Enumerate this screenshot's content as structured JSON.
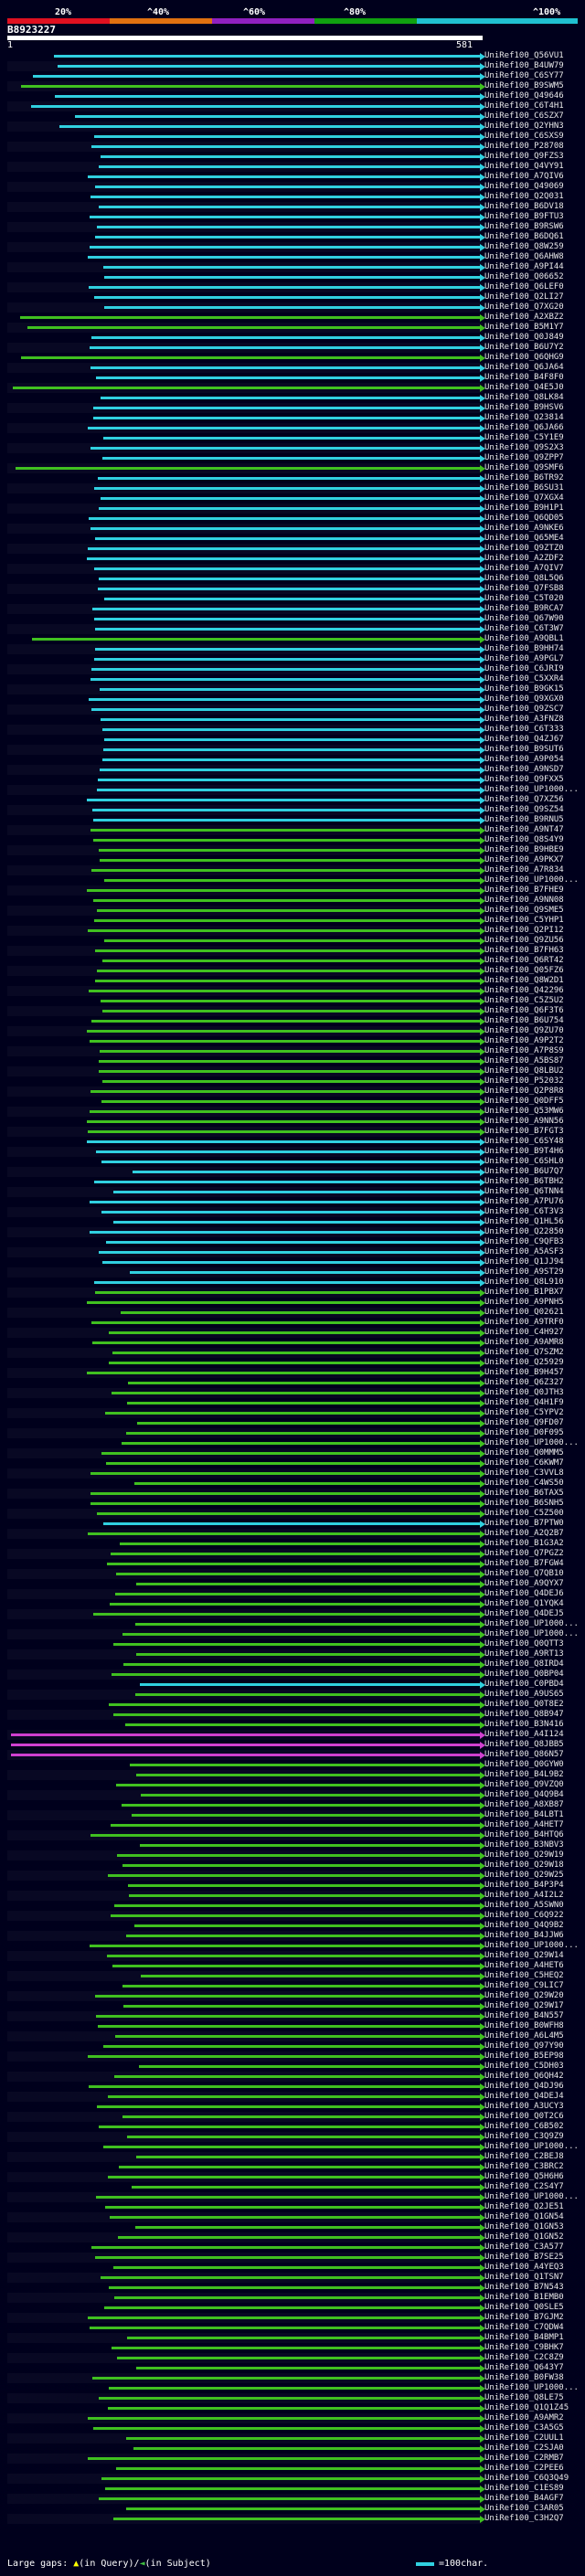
{
  "scale": {
    "labels": [
      "20%",
      "^40%",
      "^60%",
      "^80%",
      "^100%"
    ],
    "colors": [
      "#e01020",
      "#e07010",
      "#9020c0",
      "#10a010",
      "#20c0d0"
    ]
  },
  "query": {
    "id": "B8923227",
    "start": "1",
    "end": "581"
  },
  "legend": {
    "prefix": "Large gaps: ",
    "query_part": "(in Query)/",
    "subject_part": "(in Subject)",
    "scale_text": "=100char."
  },
  "hits": [
    {
      "label": "UniRef100_Q56VU1",
      "color": "cyan"
    },
    {
      "label": "UniRef100_B4UW79",
      "color": "cyan"
    },
    {
      "label": "UniRef100_C6SY77",
      "color": "cyan"
    },
    {
      "label": "UniRef100_B9SWM5",
      "color": "green"
    },
    {
      "label": "UniRef100_Q49646",
      "color": "cyan"
    },
    {
      "label": "UniRef100_C6T4H1",
      "color": "cyan"
    },
    {
      "label": "UniRef100_C6SZX7",
      "color": "cyan"
    },
    {
      "label": "UniRef100_Q2YHN3",
      "color": "cyan"
    },
    {
      "label": "UniRef100_C6SXS9",
      "color": "cyan"
    },
    {
      "label": "UniRef100_P28708",
      "color": "cyan"
    },
    {
      "label": "UniRef100_Q9FZS3",
      "color": "cyan"
    },
    {
      "label": "UniRef100_Q4VY91",
      "color": "cyan"
    },
    {
      "label": "UniRef100_A7QIV6",
      "color": "cyan"
    },
    {
      "label": "UniRef100_Q49069",
      "color": "cyan"
    },
    {
      "label": "UniRef100_Q2Q031",
      "color": "cyan"
    },
    {
      "label": "UniRef100_B6DV18",
      "color": "cyan"
    },
    {
      "label": "UniRef100_B9FTU3",
      "color": "cyan"
    },
    {
      "label": "UniRef100_B9RSW6",
      "color": "cyan"
    },
    {
      "label": "UniRef100_B6DQ61",
      "color": "cyan"
    },
    {
      "label": "UniRef100_Q8W259",
      "color": "cyan"
    },
    {
      "label": "UniRef100_Q6AHW8",
      "color": "cyan"
    },
    {
      "label": "UniRef100_A9PI44",
      "color": "cyan"
    },
    {
      "label": "UniRef100_Q06652",
      "color": "cyan"
    },
    {
      "label": "UniRef100_Q6LEF0",
      "color": "cyan"
    },
    {
      "label": "UniRef100_Q2LI27",
      "color": "cyan"
    },
    {
      "label": "UniRef100_Q7XG20",
      "color": "cyan"
    },
    {
      "label": "UniRef100_A2XBZ2",
      "color": "green"
    },
    {
      "label": "UniRef100_B5M1Y7",
      "color": "green"
    },
    {
      "label": "UniRef100_Q0J849",
      "color": "cyan"
    },
    {
      "label": "UniRef100_B6U7Y2",
      "color": "cyan"
    },
    {
      "label": "UniRef100_Q6QHG9",
      "color": "green"
    },
    {
      "label": "UniRef100_Q6JA64",
      "color": "cyan"
    },
    {
      "label": "UniRef100_B4F8F0",
      "color": "cyan"
    },
    {
      "label": "UniRef100_Q4E5J0",
      "color": "green"
    },
    {
      "label": "UniRef100_Q8LK84",
      "color": "cyan"
    },
    {
      "label": "UniRef100_B9HSV6",
      "color": "cyan"
    },
    {
      "label": "UniRef100_Q23814",
      "color": "cyan"
    },
    {
      "label": "UniRef100_Q6JA66",
      "color": "cyan"
    },
    {
      "label": "UniRef100_C5Y1E9",
      "color": "cyan"
    },
    {
      "label": "UniRef100_Q9S2X3",
      "color": "cyan"
    },
    {
      "label": "UniRef100_Q9ZPP7",
      "color": "cyan"
    },
    {
      "label": "UniRef100_Q9SMF6",
      "color": "green"
    },
    {
      "label": "UniRef100_B6TR92",
      "color": "cyan"
    },
    {
      "label": "UniRef100_B6SU31",
      "color": "cyan"
    },
    {
      "label": "UniRef100_Q7XGX4",
      "color": "cyan"
    },
    {
      "label": "UniRef100_B9H1P1",
      "color": "cyan"
    },
    {
      "label": "UniRef100_Q6QD05",
      "color": "cyan"
    },
    {
      "label": "UniRef100_A9NKE6",
      "color": "cyan"
    },
    {
      "label": "UniRef100_Q65ME4",
      "color": "cyan"
    },
    {
      "label": "UniRef100_Q9ZTZ0",
      "color": "cyan"
    },
    {
      "label": "UniRef100_A2ZDF2",
      "color": "cyan"
    },
    {
      "label": "UniRef100_A7QIV7",
      "color": "cyan"
    },
    {
      "label": "UniRef100_Q8L5Q6",
      "color": "cyan"
    },
    {
      "label": "UniRef100_Q7FSB8",
      "color": "cyan"
    },
    {
      "label": "UniRef100_C5T020",
      "color": "cyan"
    },
    {
      "label": "UniRef100_B9RCA7",
      "color": "cyan"
    },
    {
      "label": "UniRef100_Q67W90",
      "color": "cyan"
    },
    {
      "label": "UniRef100_C6T3W7",
      "color": "cyan"
    },
    {
      "label": "UniRef100_A9QBL1",
      "color": "green"
    },
    {
      "label": "UniRef100_B9HH74",
      "color": "cyan"
    },
    {
      "label": "UniRef100_A9PGL7",
      "color": "cyan"
    },
    {
      "label": "UniRef100_C6JRI9",
      "color": "cyan"
    },
    {
      "label": "UniRef100_C5XXR4",
      "color": "cyan"
    },
    {
      "label": "UniRef100_B9GK15",
      "color": "cyan"
    },
    {
      "label": "UniRef100_Q9XGX0",
      "color": "cyan"
    },
    {
      "label": "UniRef100_Q9ZSC7",
      "color": "cyan"
    },
    {
      "label": "UniRef100_A3FNZ8",
      "color": "cyan"
    },
    {
      "label": "UniRef100_C6T333",
      "color": "cyan"
    },
    {
      "label": "UniRef100_Q4ZJ67",
      "color": "cyan"
    },
    {
      "label": "UniRef100_B9SUT6",
      "color": "cyan"
    },
    {
      "label": "UniRef100_A9P054",
      "color": "cyan"
    },
    {
      "label": "UniRef100_A9NSD7",
      "color": "cyan"
    },
    {
      "label": "UniRef100_Q9FXX5",
      "color": "cyan"
    },
    {
      "label": "UniRef100_UP1000...",
      "color": "cyan"
    },
    {
      "label": "UniRef100_Q7XZ56",
      "color": "cyan"
    },
    {
      "label": "UniRef100_Q9SZ54",
      "color": "cyan"
    },
    {
      "label": "UniRef100_B9RNU5",
      "color": "cyan"
    },
    {
      "label": "UniRef100_A9NT47",
      "color": "green"
    },
    {
      "label": "UniRef100_Q8S4Y9",
      "color": "green"
    },
    {
      "label": "UniRef100_B9HBE9",
      "color": "green"
    },
    {
      "label": "UniRef100_A9PKX7",
      "color": "green"
    },
    {
      "label": "UniRef100_A7R834",
      "color": "green"
    },
    {
      "label": "UniRef100_UP1000...",
      "color": "green"
    },
    {
      "label": "UniRef100_B7FHE9",
      "color": "green"
    },
    {
      "label": "UniRef100_A9NN08",
      "color": "green"
    },
    {
      "label": "UniRef100_Q9SME5",
      "color": "green"
    },
    {
      "label": "UniRef100_C5YHP1",
      "color": "green"
    },
    {
      "label": "UniRef100_Q2PI12",
      "color": "green"
    },
    {
      "label": "UniRef100_Q9ZU56",
      "color": "green"
    },
    {
      "label": "UniRef100_B7FH63",
      "color": "green"
    },
    {
      "label": "UniRef100_Q6RT42",
      "color": "green"
    },
    {
      "label": "UniRef100_Q05FZ6",
      "color": "green"
    },
    {
      "label": "UniRef100_Q8W2D1",
      "color": "green"
    },
    {
      "label": "UniRef100_Q42296",
      "color": "green"
    },
    {
      "label": "UniRef100_C5Z5U2",
      "color": "green"
    },
    {
      "label": "UniRef100_Q6F3T6",
      "color": "green"
    },
    {
      "label": "UniRef100_B6U754",
      "color": "green"
    },
    {
      "label": "UniRef100_Q9ZU70",
      "color": "green"
    },
    {
      "label": "UniRef100_A9P2T2",
      "color": "green"
    },
    {
      "label": "UniRef100_A7P8S9",
      "color": "green"
    },
    {
      "label": "UniRef100_A5BS87",
      "color": "green"
    },
    {
      "label": "UniRef100_Q8LBU2",
      "color": "green"
    },
    {
      "label": "UniRef100_P52032",
      "color": "green"
    },
    {
      "label": "UniRef100_Q2P8R8",
      "color": "green"
    },
    {
      "label": "UniRef100_Q0DFF5",
      "color": "green"
    },
    {
      "label": "UniRef100_Q53MW6",
      "color": "green"
    },
    {
      "label": "UniRef100_A9NN56",
      "color": "green"
    },
    {
      "label": "UniRef100_B7FGT3",
      "color": "green"
    },
    {
      "label": "UniRef100_C6SY48",
      "color": "cyan"
    },
    {
      "label": "UniRef100_B9T4H6",
      "color": "cyan"
    },
    {
      "label": "UniRef100_C6SHL0",
      "color": "cyan"
    },
    {
      "label": "UniRef100_B6U7Q7",
      "color": "cyan"
    },
    {
      "label": "UniRef100_B6TBH2",
      "color": "cyan"
    },
    {
      "label": "UniRef100_Q6TNN4",
      "color": "cyan"
    },
    {
      "label": "UniRef100_A7PU76",
      "color": "cyan"
    },
    {
      "label": "UniRef100_C6T3V3",
      "color": "cyan"
    },
    {
      "label": "UniRef100_Q1HL56",
      "color": "cyan"
    },
    {
      "label": "UniRef100_Q22850",
      "color": "cyan"
    },
    {
      "label": "UniRef100_C9QFB3",
      "color": "cyan"
    },
    {
      "label": "UniRef100_A5ASF3",
      "color": "cyan"
    },
    {
      "label": "UniRef100_Q1JJ94",
      "color": "cyan"
    },
    {
      "label": "UniRef100_A9ST29",
      "color": "cyan"
    },
    {
      "label": "UniRef100_Q8L910",
      "color": "cyan"
    },
    {
      "label": "UniRef100_B1PBX7",
      "color": "green"
    },
    {
      "label": "UniRef100_A9PNH5",
      "color": "green"
    },
    {
      "label": "UniRef100_Q02621",
      "color": "green"
    },
    {
      "label": "UniRef100_A9TRF0",
      "color": "green"
    },
    {
      "label": "UniRef100_C4H927",
      "color": "green"
    },
    {
      "label": "UniRef100_A9AMR8",
      "color": "green"
    },
    {
      "label": "UniRef100_Q7SZM2",
      "color": "green"
    },
    {
      "label": "UniRef100_Q25929",
      "color": "green"
    },
    {
      "label": "UniRef100_B9H457",
      "color": "green"
    },
    {
      "label": "UniRef100_Q6Z327",
      "color": "green"
    },
    {
      "label": "UniRef100_Q0JTH3",
      "color": "green"
    },
    {
      "label": "UniRef100_Q4H1F9",
      "color": "green"
    },
    {
      "label": "UniRef100_C5YPV2",
      "color": "green"
    },
    {
      "label": "UniRef100_Q9FD07",
      "color": "green"
    },
    {
      "label": "UniRef100_D0F095",
      "color": "green"
    },
    {
      "label": "UniRef100_UP1000...",
      "color": "green"
    },
    {
      "label": "UniRef100_Q0MMM5",
      "color": "green"
    },
    {
      "label": "UniRef100_C6KWM7",
      "color": "green"
    },
    {
      "label": "UniRef100_C3VVL8",
      "color": "green"
    },
    {
      "label": "UniRef100_C4WS50",
      "color": "green"
    },
    {
      "label": "UniRef100_B6TAX5",
      "color": "green"
    },
    {
      "label": "UniRef100_B6SNH5",
      "color": "green"
    },
    {
      "label": "UniRef100_C5Z500",
      "color": "green"
    },
    {
      "label": "UniRef100_B7PTW0",
      "color": "cyan"
    },
    {
      "label": "UniRef100_A2Q2B7",
      "color": "green"
    },
    {
      "label": "UniRef100_B1G3A2",
      "color": "green"
    },
    {
      "label": "UniRef100_Q7PGZ2",
      "color": "green"
    },
    {
      "label": "UniRef100_B7FGW4",
      "color": "green"
    },
    {
      "label": "UniRef100_Q7QB10",
      "color": "green"
    },
    {
      "label": "UniRef100_A9QYX7",
      "color": "green"
    },
    {
      "label": "UniRef100_Q4DEJ6",
      "color": "green"
    },
    {
      "label": "UniRef100_Q1YQK4",
      "color": "green"
    },
    {
      "label": "UniRef100_Q4DEJ5",
      "color": "green"
    },
    {
      "label": "UniRef100_UP1000...",
      "color": "green"
    },
    {
      "label": "UniRef100_UP1000...",
      "color": "green"
    },
    {
      "label": "UniRef100_Q0QTT3",
      "color": "green"
    },
    {
      "label": "UniRef100_A9RT13",
      "color": "green"
    },
    {
      "label": "UniRef100_Q8IRD4",
      "color": "green"
    },
    {
      "label": "UniRef100_Q0BP04",
      "color": "green"
    },
    {
      "label": "UniRef100_C0PBD4",
      "color": "cyan"
    },
    {
      "label": "UniRef100_A9US65",
      "color": "green"
    },
    {
      "label": "UniRef100_Q0T8E2",
      "color": "green"
    },
    {
      "label": "UniRef100_Q8B947",
      "color": "green"
    },
    {
      "label": "UniRef100_B3N416",
      "color": "green"
    },
    {
      "label": "UniRef100_A4I124",
      "color": "magenta"
    },
    {
      "label": "UniRef100_Q8JBB5",
      "color": "magenta"
    },
    {
      "label": "UniRef100_Q86N57",
      "color": "magenta"
    },
    {
      "label": "UniRef100_Q0GYW0",
      "color": "green"
    },
    {
      "label": "UniRef100_B4L9B2",
      "color": "green"
    },
    {
      "label": "UniRef100_Q9VZQ0",
      "color": "green"
    },
    {
      "label": "UniRef100_Q4Q9B4",
      "color": "green"
    },
    {
      "label": "UniRef100_A8XB87",
      "color": "green"
    },
    {
      "label": "UniRef100_B4LBT1",
      "color": "green"
    },
    {
      "label": "UniRef100_A4HET7",
      "color": "green"
    },
    {
      "label": "UniRef100_B4HTQ6",
      "color": "green"
    },
    {
      "label": "UniRef100_B3NBV3",
      "color": "green"
    },
    {
      "label": "UniRef100_Q29W19",
      "color": "green"
    },
    {
      "label": "UniRef100_Q29W18",
      "color": "green"
    },
    {
      "label": "UniRef100_Q29W25",
      "color": "green"
    },
    {
      "label": "UniRef100_B4P3P4",
      "color": "green"
    },
    {
      "label": "UniRef100_A4I2L2",
      "color": "green"
    },
    {
      "label": "UniRef100_A5SWN0",
      "color": "green"
    },
    {
      "label": "UniRef100_C6Q922",
      "color": "green"
    },
    {
      "label": "UniRef100_Q4Q9B2",
      "color": "green"
    },
    {
      "label": "UniRef100_B4JJW6",
      "color": "green"
    },
    {
      "label": "UniRef100_UP1000...",
      "color": "green"
    },
    {
      "label": "UniRef100_Q29W14",
      "color": "green"
    },
    {
      "label": "UniRef100_A4HET6",
      "color": "green"
    },
    {
      "label": "UniRef100_C5HEQ2",
      "color": "green"
    },
    {
      "label": "UniRef100_C9LIC7",
      "color": "green"
    },
    {
      "label": "UniRef100_Q29W20",
      "color": "green"
    },
    {
      "label": "UniRef100_Q29W17",
      "color": "green"
    },
    {
      "label": "UniRef100_B4N557",
      "color": "green"
    },
    {
      "label": "UniRef100_B0WFH8",
      "color": "green"
    },
    {
      "label": "UniRef100_A6L4M5",
      "color": "green"
    },
    {
      "label": "UniRef100_Q97Y90",
      "color": "green"
    },
    {
      "label": "UniRef100_B5EP98",
      "color": "green"
    },
    {
      "label": "UniRef100_C5DH03",
      "color": "green"
    },
    {
      "label": "UniRef100_Q6QH42",
      "color": "green"
    },
    {
      "label": "UniRef100_Q4DJ96",
      "color": "green"
    },
    {
      "label": "UniRef100_Q4DEJ4",
      "color": "green"
    },
    {
      "label": "UniRef100_A3UCY3",
      "color": "green"
    },
    {
      "label": "UniRef100_Q0T2C6",
      "color": "green"
    },
    {
      "label": "UniRef100_C6B502",
      "color": "green"
    },
    {
      "label": "UniRef100_C3Q9Z9",
      "color": "green"
    },
    {
      "label": "UniRef100_UP1000...",
      "color": "green"
    },
    {
      "label": "UniRef100_C2BEJ8",
      "color": "green"
    },
    {
      "label": "UniRef100_C3BRC2",
      "color": "green"
    },
    {
      "label": "UniRef100_Q5H6H6",
      "color": "green"
    },
    {
      "label": "UniRef100_C2S4Y7",
      "color": "green"
    },
    {
      "label": "UniRef100_UP1000...",
      "color": "green"
    },
    {
      "label": "UniRef100_Q2JE51",
      "color": "green"
    },
    {
      "label": "UniRef100_Q1GN54",
      "color": "green"
    },
    {
      "label": "UniRef100_Q1GN53",
      "color": "green"
    },
    {
      "label": "UniRef100_Q1GN52",
      "color": "green"
    },
    {
      "label": "UniRef100_C3A577",
      "color": "green"
    },
    {
      "label": "UniRef100_B7SE25",
      "color": "green"
    },
    {
      "label": "UniRef100_A4YEQ3",
      "color": "green"
    },
    {
      "label": "UniRef100_Q1TSN7",
      "color": "green"
    },
    {
      "label": "UniRef100_B7N543",
      "color": "green"
    },
    {
      "label": "UniRef100_B1EMB0",
      "color": "green"
    },
    {
      "label": "UniRef100_Q0SLE5",
      "color": "green"
    },
    {
      "label": "UniRef100_B7GJM2",
      "color": "green"
    },
    {
      "label": "UniRef100_C7QDW4",
      "color": "green"
    },
    {
      "label": "UniRef100_B4BMP1",
      "color": "green"
    },
    {
      "label": "UniRef100_C9BHK7",
      "color": "green"
    },
    {
      "label": "UniRef100_C2C8Z9",
      "color": "green"
    },
    {
      "label": "UniRef100_Q643Y7",
      "color": "green"
    },
    {
      "label": "UniRef100_B0FW38",
      "color": "green"
    },
    {
      "label": "UniRef100_UP1000...",
      "color": "green"
    },
    {
      "label": "UniRef100_Q8LE75",
      "color": "green"
    },
    {
      "label": "UniRef100_Q1Q1Z45",
      "color": "green"
    },
    {
      "label": "UniRef100_A9AMR2",
      "color": "green"
    },
    {
      "label": "UniRef100_C3A5G5",
      "color": "green"
    },
    {
      "label": "UniRef100_C2UUL1",
      "color": "green"
    },
    {
      "label": "UniRef100_C2SJA0",
      "color": "green"
    },
    {
      "label": "UniRef100_C2RMB7",
      "color": "green"
    },
    {
      "label": "UniRef100_C2PEE6",
      "color": "green"
    },
    {
      "label": "UniRef100_C6Q3Q49",
      "color": "green"
    },
    {
      "label": "UniRef100_C1ES89",
      "color": "green"
    },
    {
      "label": "UniRef100_B4AGF7",
      "color": "green"
    },
    {
      "label": "UniRef100_C3AR05",
      "color": "green"
    },
    {
      "label": "UniRef100_C3H2Q7",
      "color": "green"
    }
  ]
}
